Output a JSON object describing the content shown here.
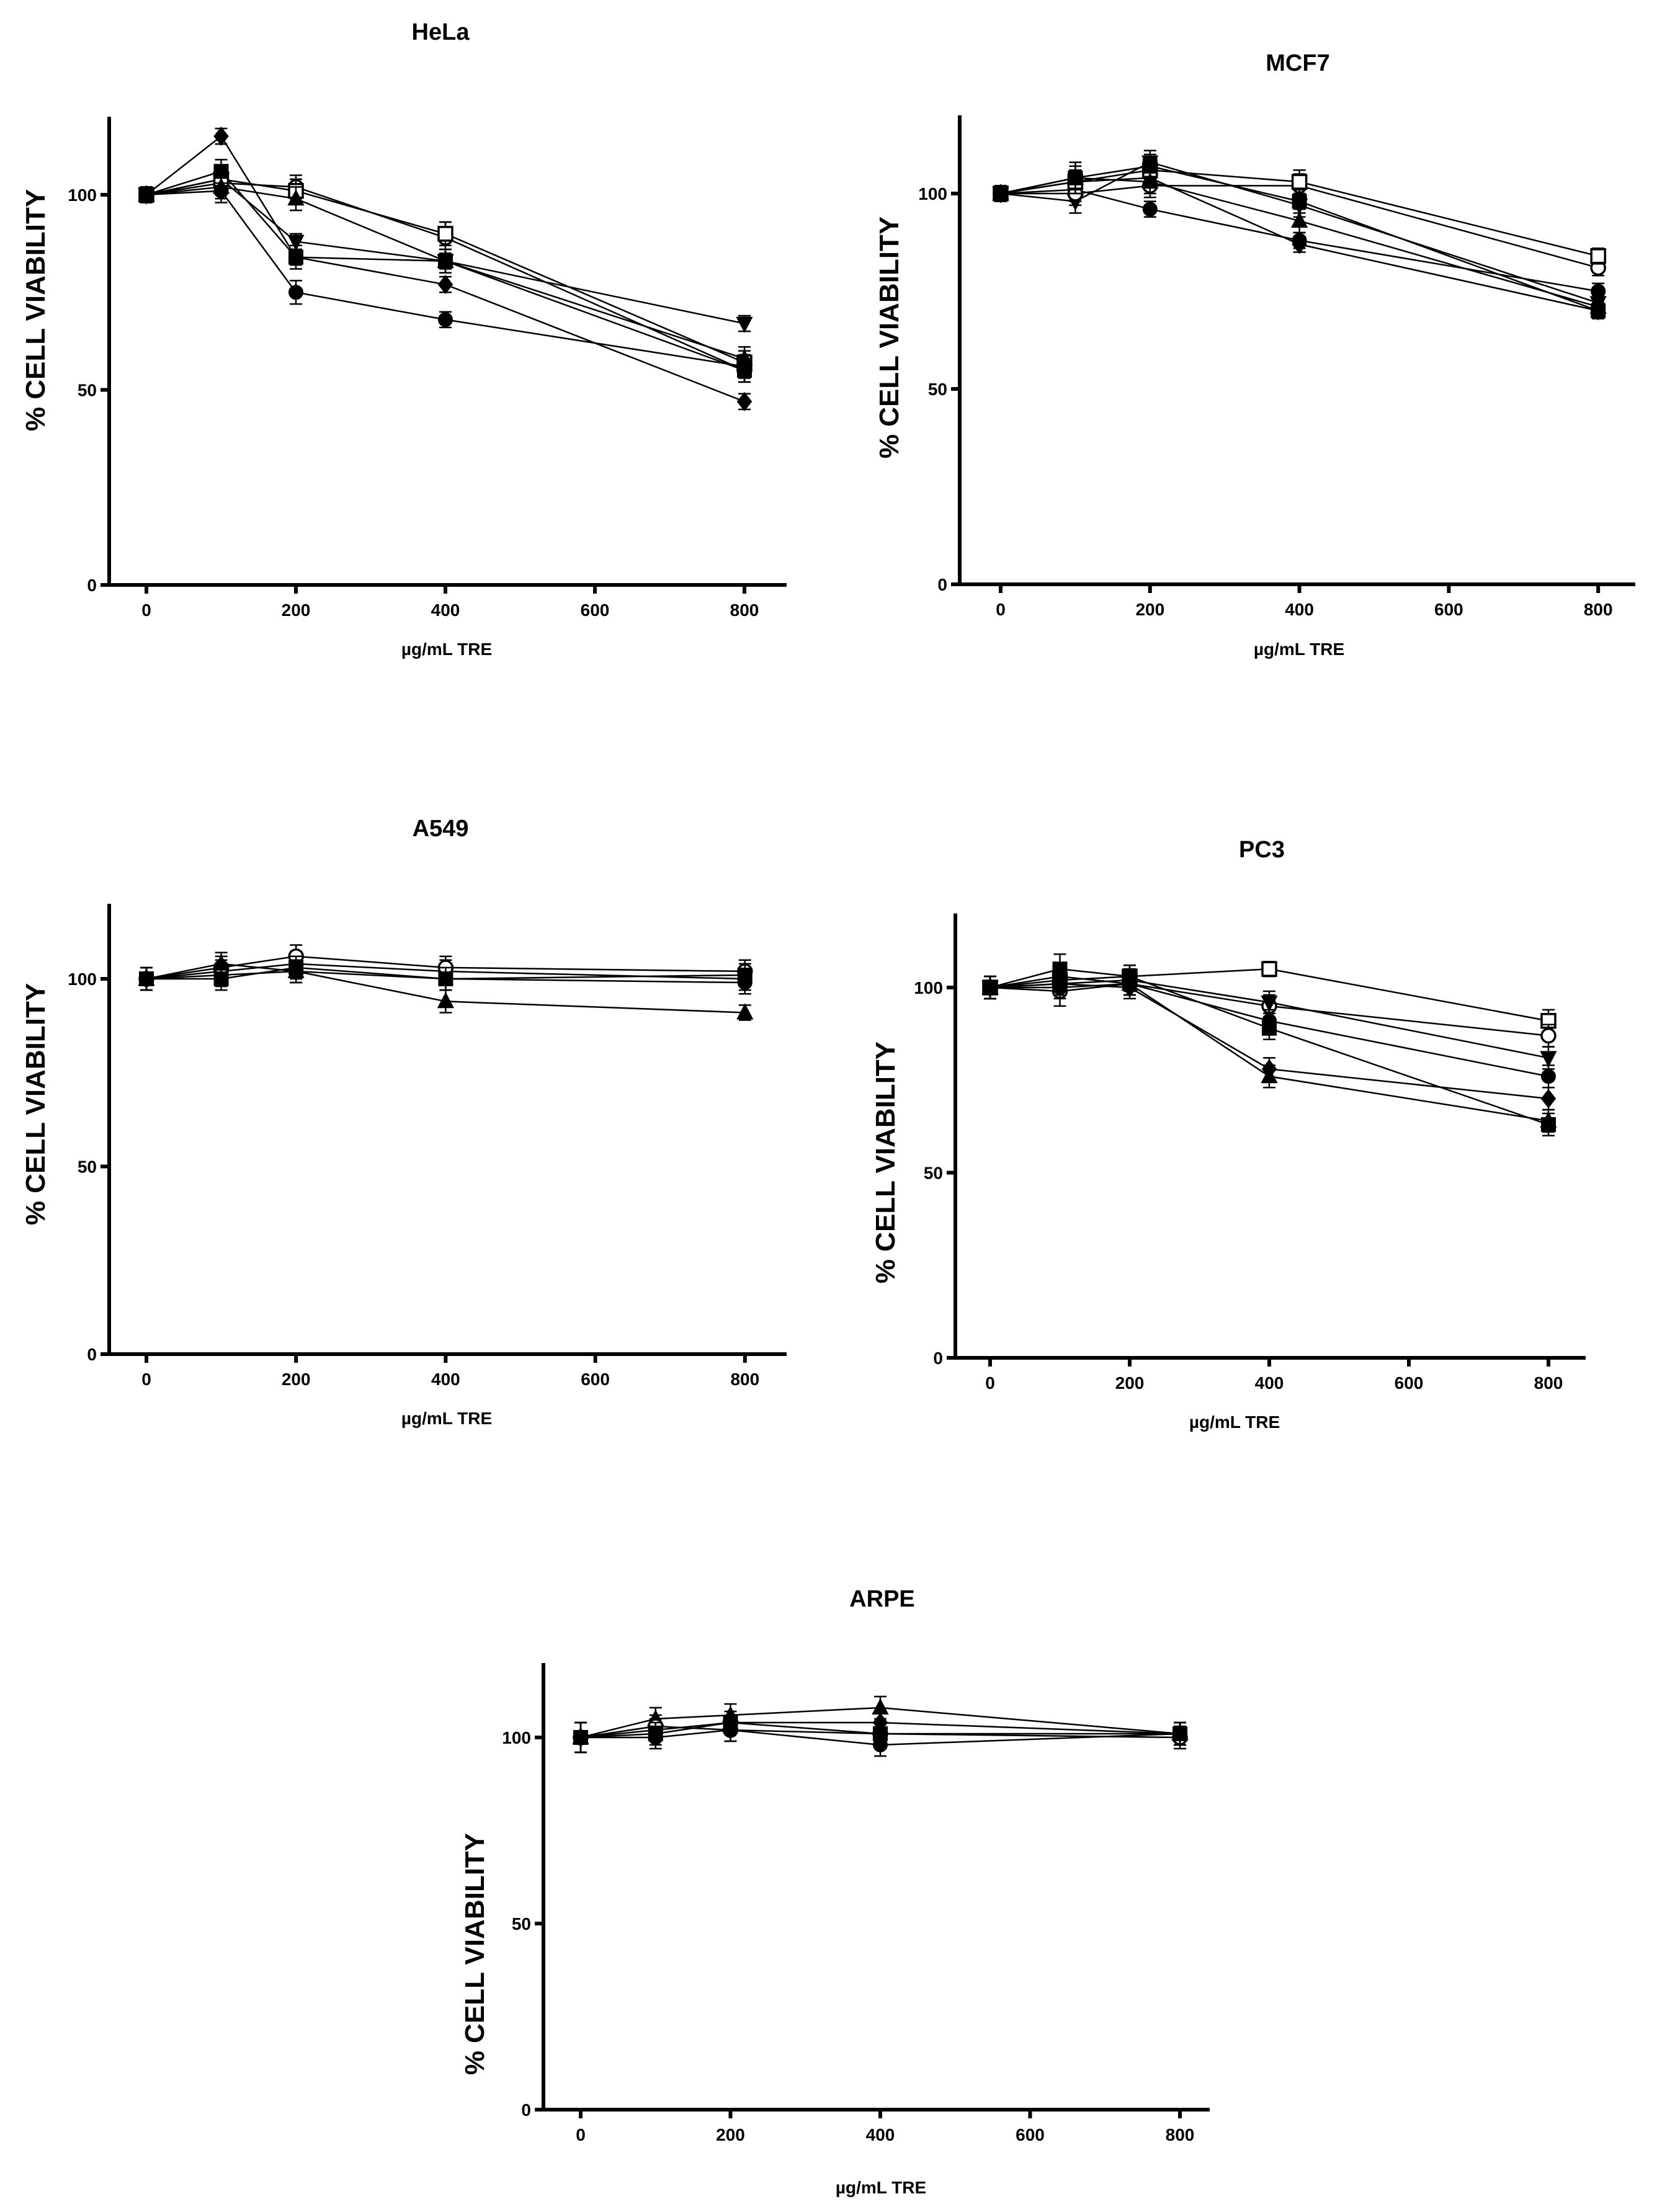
{
  "chart_data": [
    {
      "id": "hela",
      "type": "line",
      "title": "HeLa",
      "xlabel": "µg/mL TRE",
      "ylabel": "% CELL VIABILITY",
      "x": [
        0,
        100,
        200,
        400,
        800
      ],
      "xticks": [
        0,
        200,
        400,
        600,
        800
      ],
      "yticks": [
        0,
        50,
        100
      ],
      "xlim": [
        -50,
        860
      ],
      "ylim": [
        0,
        120
      ],
      "grid": false,
      "series": [
        {
          "name": "filled diamond",
          "marker": "diamond",
          "fill": "filled",
          "values": [
            100,
            115,
            84,
            77,
            47
          ],
          "errors": [
            2,
            2,
            2,
            2,
            2
          ]
        },
        {
          "name": "filled circle",
          "marker": "circle",
          "fill": "filled",
          "values": [
            100,
            101,
            75,
            68,
            56
          ],
          "errors": [
            2,
            3,
            3,
            2,
            3
          ]
        },
        {
          "name": "filled down-triangle",
          "marker": "triangle-down",
          "fill": "filled",
          "values": [
            100,
            104,
            88,
            83,
            67
          ],
          "errors": [
            2,
            3,
            2,
            2,
            2
          ]
        },
        {
          "name": "open circle",
          "marker": "circle",
          "fill": "open",
          "values": [
            100,
            103,
            102,
            89,
            55
          ],
          "errors": [
            2,
            3,
            3,
            4,
            3
          ]
        },
        {
          "name": "open square",
          "marker": "square",
          "fill": "open",
          "values": [
            100,
            104,
            101,
            90,
            57
          ],
          "errors": [
            2,
            3,
            3,
            3,
            3
          ]
        },
        {
          "name": "filled triangle",
          "marker": "triangle",
          "fill": "filled",
          "values": [
            100,
            102,
            99,
            83,
            58
          ],
          "errors": [
            2,
            3,
            3,
            3,
            3
          ]
        },
        {
          "name": "filled square",
          "marker": "square",
          "fill": "filled",
          "values": [
            100,
            106,
            84,
            83,
            55
          ],
          "errors": [
            2,
            3,
            3,
            3,
            3
          ]
        }
      ]
    },
    {
      "id": "mcf7",
      "type": "line",
      "title": "MCF7",
      "xlabel": "µg/mL TRE",
      "ylabel": "% CELL VIABILITY",
      "x": [
        0,
        100,
        200,
        400,
        800
      ],
      "xticks": [
        0,
        200,
        400,
        600,
        800
      ],
      "yticks": [
        0,
        50,
        100
      ],
      "xlim": [
        -50,
        860
      ],
      "ylim": [
        0,
        120
      ],
      "grid": false,
      "series": [
        {
          "name": "filled diamond",
          "marker": "diamond",
          "fill": "filled",
          "values": [
            100,
            103,
            104,
            87,
            70
          ],
          "errors": [
            2,
            3,
            3,
            2,
            2
          ]
        },
        {
          "name": "filled circle",
          "marker": "circle",
          "fill": "filled",
          "values": [
            100,
            101,
            96,
            88,
            75
          ],
          "errors": [
            2,
            3,
            2,
            2,
            2
          ]
        },
        {
          "name": "filled down-triangle",
          "marker": "triangle-down",
          "fill": "filled",
          "values": [
            100,
            98,
            108,
            97,
            72
          ],
          "errors": [
            2,
            3,
            3,
            3,
            2
          ]
        },
        {
          "name": "open circle",
          "marker": "circle",
          "fill": "open",
          "values": [
            100,
            100,
            102,
            102,
            81
          ],
          "errors": [
            2,
            3,
            3,
            3,
            2
          ]
        },
        {
          "name": "open square",
          "marker": "square",
          "fill": "open",
          "values": [
            100,
            103,
            106,
            103,
            84
          ],
          "errors": [
            2,
            3,
            3,
            3,
            2
          ]
        },
        {
          "name": "filled triangle",
          "marker": "triangle",
          "fill": "filled",
          "values": [
            100,
            104,
            103,
            93,
            71
          ],
          "errors": [
            2,
            3,
            3,
            3,
            2
          ]
        },
        {
          "name": "filled square",
          "marker": "square",
          "fill": "filled",
          "values": [
            100,
            104,
            107,
            98,
            70
          ],
          "errors": [
            2,
            4,
            3,
            3,
            2
          ]
        }
      ]
    },
    {
      "id": "a549",
      "type": "line",
      "title": "A549",
      "xlabel": "µg/mL TRE",
      "ylabel": "% CELL VIABILITY",
      "x": [
        0,
        100,
        200,
        400,
        800
      ],
      "xticks": [
        0,
        200,
        400,
        600,
        800
      ],
      "yticks": [
        0,
        50,
        100
      ],
      "xlim": [
        -50,
        860
      ],
      "ylim": [
        0,
        120
      ],
      "grid": false,
      "series": [
        {
          "name": "filled diamond",
          "marker": "diamond",
          "fill": "filled",
          "values": [
            100,
            102,
            104,
            102,
            100
          ],
          "errors": [
            3,
            3,
            3,
            3,
            3
          ]
        },
        {
          "name": "filled circle",
          "marker": "circle",
          "fill": "filled",
          "values": [
            100,
            101,
            102,
            100,
            99
          ],
          "errors": [
            3,
            3,
            3,
            3,
            3
          ]
        },
        {
          "name": "open circle",
          "marker": "circle",
          "fill": "open",
          "values": [
            100,
            103,
            106,
            103,
            102
          ],
          "errors": [
            3,
            3,
            3,
            3,
            3
          ]
        },
        {
          "name": "filled triangle",
          "marker": "triangle",
          "fill": "filled",
          "values": [
            100,
            104,
            102,
            94,
            91
          ],
          "errors": [
            3,
            3,
            3,
            3,
            2
          ]
        },
        {
          "name": "filled square",
          "marker": "square",
          "fill": "filled",
          "values": [
            100,
            100,
            103,
            100,
            101
          ],
          "errors": [
            3,
            3,
            3,
            3,
            3
          ]
        }
      ]
    },
    {
      "id": "pc3",
      "type": "line",
      "title": "PC3",
      "xlabel": "µg/mL TRE",
      "ylabel": "% CELL VIABILITY",
      "x": [
        0,
        100,
        200,
        400,
        800
      ],
      "xticks": [
        0,
        200,
        400,
        600,
        800
      ],
      "yticks": [
        0,
        50,
        100
      ],
      "xlim": [
        -50,
        860
      ],
      "ylim": [
        0,
        120
      ],
      "grid": false,
      "series": [
        {
          "name": "open square",
          "marker": "square",
          "fill": "open",
          "values": [
            100,
            102,
            103,
            105,
            91
          ],
          "errors": [
            3,
            3,
            3,
            2,
            3
          ]
        },
        {
          "name": "open circle",
          "marker": "circle",
          "fill": "open",
          "values": [
            100,
            99,
            101,
            95,
            87
          ],
          "errors": [
            3,
            4,
            3,
            3,
            3
          ]
        },
        {
          "name": "filled down-triangle",
          "marker": "triangle-down",
          "fill": "filled",
          "values": [
            100,
            101,
            102,
            96,
            81
          ],
          "errors": [
            3,
            3,
            3,
            3,
            3
          ]
        },
        {
          "name": "filled circle",
          "marker": "circle",
          "fill": "filled",
          "values": [
            100,
            100,
            101,
            91,
            76
          ],
          "errors": [
            3,
            3,
            3,
            3,
            3
          ]
        },
        {
          "name": "filled diamond",
          "marker": "diamond",
          "fill": "filled",
          "values": [
            100,
            101,
            100,
            78,
            70
          ],
          "errors": [
            3,
            3,
            3,
            3,
            3
          ]
        },
        {
          "name": "filled triangle",
          "marker": "triangle",
          "fill": "filled",
          "values": [
            100,
            103,
            101,
            76,
            64
          ],
          "errors": [
            3,
            3,
            3,
            3,
            3
          ]
        },
        {
          "name": "filled square",
          "marker": "square",
          "fill": "filled",
          "values": [
            100,
            105,
            103,
            89,
            63
          ],
          "errors": [
            3,
            4,
            3,
            3,
            3
          ]
        }
      ]
    },
    {
      "id": "arpe",
      "type": "line",
      "title": "ARPE",
      "xlabel": "µg/mL TRE",
      "ylabel": "% CELL VIABILITY",
      "x": [
        0,
        100,
        200,
        400,
        800
      ],
      "xticks": [
        0,
        200,
        400,
        600,
        800
      ],
      "yticks": [
        0,
        50,
        100
      ],
      "xlim": [
        -50,
        860
      ],
      "ylim": [
        0,
        120
      ],
      "grid": false,
      "series": [
        {
          "name": "filled triangle",
          "marker": "triangle",
          "fill": "filled",
          "values": [
            100,
            105,
            106,
            108,
            101
          ],
          "errors": [
            4,
            3,
            3,
            3,
            3
          ]
        },
        {
          "name": "filled diamond",
          "marker": "diamond",
          "fill": "filled",
          "values": [
            100,
            102,
            104,
            104,
            101
          ],
          "errors": [
            4,
            3,
            3,
            3,
            3
          ]
        },
        {
          "name": "open circle",
          "marker": "circle",
          "fill": "open",
          "values": [
            100,
            103,
            102,
            101,
            100
          ],
          "errors": [
            4,
            3,
            3,
            3,
            3
          ]
        },
        {
          "name": "filled circle",
          "marker": "circle",
          "fill": "filled",
          "values": [
            100,
            100,
            102,
            98,
            101
          ],
          "errors": [
            4,
            3,
            3,
            3,
            3
          ]
        },
        {
          "name": "filled square",
          "marker": "square",
          "fill": "filled",
          "values": [
            100,
            101,
            104,
            101,
            101
          ],
          "errors": [
            4,
            3,
            3,
            3,
            3
          ]
        }
      ]
    }
  ]
}
